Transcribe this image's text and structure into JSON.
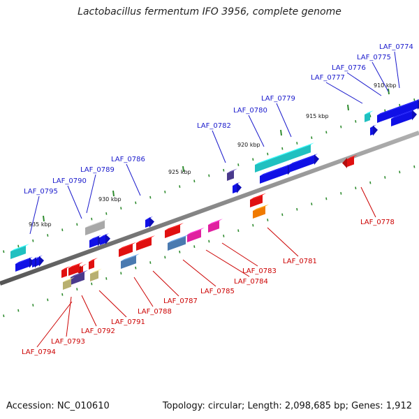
{
  "title": "Lactobacillus fermentum IFO 3956, complete genome",
  "footer": {
    "accession": "Accession: NC_010610",
    "info": "Topology: circular; Length: 2,098,685 bp; Genes: 1,912"
  },
  "colors": {
    "forward_label": "#1a1acc",
    "reverse_label": "#cc0000",
    "backbone": "#888888",
    "tick": "#2e8b2e"
  },
  "kbp_labels": [
    "910 kbp",
    "915 kbp",
    "920 kbp",
    "925 kbp",
    "930 kbp",
    "935 kbp"
  ],
  "forward_genes": [
    "LAF_0774",
    "LAF_0775",
    "LAF_0776",
    "LAF_0777",
    "LAF_0779",
    "LAF_0780",
    "LAF_0782",
    "LAF_0786",
    "LAF_0789",
    "LAF_0790",
    "LAF_0795"
  ],
  "reverse_genes": [
    "LAF_0778",
    "LAF_0781",
    "LAF_0783",
    "LAF_0784",
    "LAF_0785",
    "LAF_0787",
    "LAF_0788",
    "LAF_0791",
    "LAF_0792",
    "LAF_0793",
    "LAF_0794"
  ]
}
